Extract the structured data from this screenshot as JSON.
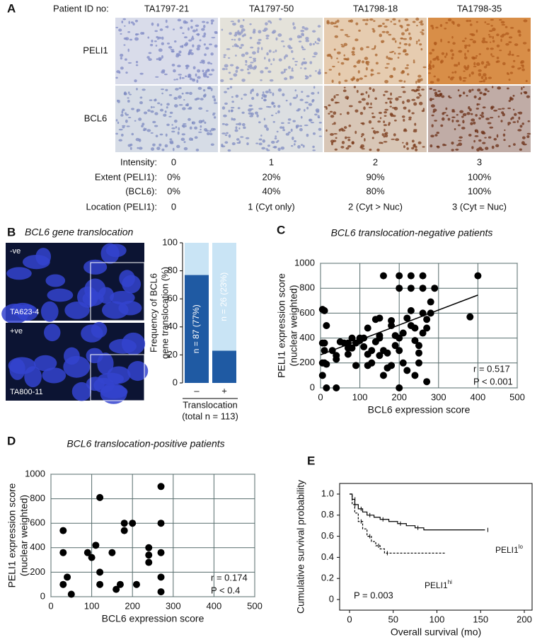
{
  "panel_a": {
    "label": "A",
    "header": "Patient ID no:",
    "patients": [
      "TA1797-21",
      "TA1797-50",
      "TA1798-18",
      "TA1798-35"
    ],
    "stains": [
      "PELI1",
      "BCL6"
    ],
    "rows": [
      {
        "label": "Intensity:",
        "cells": [
          "0",
          "1",
          "2",
          "3"
        ]
      },
      {
        "label": "Extent (PELI1):",
        "cells": [
          "0%",
          "20%",
          "90%",
          "100%"
        ]
      },
      {
        "label": "(BCL6):",
        "cells": [
          "0%",
          "40%",
          "80%",
          "100%"
        ]
      },
      {
        "label": "Location (PELI1):",
        "cells": [
          "0",
          "1 (Cyt only)",
          "2 (Cyt > Nuc)",
          "3 (Cyt = Nuc)"
        ]
      }
    ]
  },
  "panel_b": {
    "label": "B",
    "title": "BCL6 gene translocation",
    "images": [
      {
        "tag": "-ve",
        "id": "TA623-4"
      },
      {
        "tag": "+ve",
        "id": "TA800-11"
      }
    ]
  },
  "chart_data": [
    {
      "type": "bar",
      "categories": [
        "–",
        "+"
      ],
      "series": [
        {
          "color": "#1f5aa3",
          "values": [
            77,
            23
          ],
          "value_labels": [
            "n = 87 (77%)",
            "n = 26 (23%)"
          ]
        },
        {
          "color": "#c9e4f5",
          "values": [
            23,
            77
          ]
        }
      ],
      "ylabel": [
        "Frequency of BCL6",
        "gene translocation (%)"
      ],
      "xlabel": [
        "Translocation",
        "(total n = 113)"
      ],
      "ylim": [
        0,
        100
      ],
      "yticks": [
        0,
        20,
        40,
        60,
        80,
        100
      ]
    },
    {
      "type": "scatter",
      "label": "C",
      "title": "BCL6 translocation-negative patients",
      "xlabel": "BCL6 expression score",
      "ylabel": [
        "PELI1 expression score",
        "(nuclear weighted)"
      ],
      "annotations": [
        "r = 0.517",
        "P < 0.001"
      ],
      "grid": true,
      "color": "#000000",
      "xlim": [
        0,
        500
      ],
      "xticks": [
        0,
        100,
        200,
        300,
        400,
        500
      ],
      "ylim": [
        0,
        1000
      ],
      "yticks": [
        0,
        200,
        400,
        600,
        800,
        1000
      ],
      "x": [
        5,
        10,
        15,
        10,
        5,
        10,
        5,
        10,
        5,
        15,
        15,
        30,
        40,
        40,
        40,
        50,
        60,
        70,
        70,
        70,
        80,
        80,
        90,
        90,
        100,
        100,
        110,
        110,
        120,
        120,
        120,
        130,
        130,
        140,
        140,
        150,
        150,
        150,
        150,
        160,
        160,
        160,
        170,
        170,
        180,
        180,
        180,
        190,
        190,
        200,
        200,
        200,
        200,
        200,
        210,
        210,
        220,
        220,
        230,
        230,
        230,
        230,
        240,
        240,
        240,
        250,
        250,
        250,
        260,
        260,
        260,
        260,
        270,
        270,
        270,
        280,
        280,
        290,
        380,
        400
      ],
      "values": [
        630,
        620,
        500,
        360,
        360,
        300,
        200,
        200,
        100,
        0,
        190,
        300,
        0,
        260,
        230,
        370,
        360,
        360,
        320,
        270,
        400,
        320,
        180,
        360,
        380,
        400,
        330,
        400,
        270,
        180,
        480,
        300,
        200,
        550,
        370,
        400,
        560,
        260,
        420,
        900,
        300,
        100,
        280,
        160,
        180,
        500,
        540,
        420,
        340,
        900,
        800,
        400,
        300,
        0,
        440,
        200,
        140,
        560,
        900,
        800,
        500,
        620,
        100,
        480,
        380,
        340,
        200,
        280,
        900,
        800,
        600,
        440,
        550,
        50,
        480,
        600,
        690,
        800,
        570,
        900
      ],
      "trend": {
        "x": [
          0,
          400
        ],
        "values": [
          265,
          745
        ]
      }
    },
    {
      "type": "scatter",
      "label": "D",
      "title": "BCL6 translocation-positive patients",
      "xlabel": "BCL6 expression score",
      "ylabel": [
        "PELI1 expression score",
        "(nuclear weighted)"
      ],
      "annotations": [
        "r = 0.174",
        "P < 0.4"
      ],
      "grid": true,
      "color": "#000000",
      "xlim": [
        0,
        500
      ],
      "xticks": [
        0,
        100,
        200,
        300,
        400,
        500
      ],
      "ylim": [
        0,
        1000
      ],
      "yticks": [
        0,
        200,
        400,
        600,
        800,
        1000
      ],
      "x": [
        30,
        30,
        30,
        40,
        50,
        90,
        100,
        110,
        120,
        120,
        120,
        150,
        160,
        170,
        180,
        180,
        200,
        210,
        240,
        240,
        240,
        270,
        270,
        270,
        270,
        270
      ],
      "values": [
        540,
        360,
        100,
        160,
        20,
        360,
        320,
        420,
        200,
        810,
        100,
        360,
        60,
        100,
        540,
        600,
        600,
        100,
        400,
        340,
        280,
        600,
        900,
        360,
        160,
        40
      ]
    },
    {
      "type": "line",
      "label": "E",
      "xlabel": "Overall survival (mo)",
      "ylabel": "Cumulative survival probability",
      "annotations": [
        "P = 0.003"
      ],
      "xlim": [
        0,
        200
      ],
      "xticks": [
        0,
        50,
        100,
        150,
        200
      ],
      "ylim": [
        0,
        1
      ],
      "yticks": [
        0,
        0.2,
        0.4,
        0.6,
        0.8,
        {
          "value": 1,
          "label": "1.0"
        }
      ],
      "series": [
        {
          "name": "PELI1",
          "name_superscript": "lo",
          "color": "#000000",
          "dash": false,
          "x": [
            0,
            3,
            6,
            10,
            15,
            20,
            28,
            35,
            45,
            55,
            65,
            75,
            85,
            155
          ],
          "values": [
            1,
            0.95,
            0.9,
            0.86,
            0.83,
            0.8,
            0.78,
            0.76,
            0.74,
            0.72,
            0.7,
            0.68,
            0.66,
            0.66
          ]
        },
        {
          "name": "PELI1",
          "name_superscript": "hi",
          "color": "#000000",
          "dash": true,
          "x": [
            0,
            3,
            6,
            10,
            15,
            20,
            25,
            30,
            35,
            40,
            110
          ],
          "values": [
            1,
            0.9,
            0.82,
            0.74,
            0.67,
            0.6,
            0.55,
            0.51,
            0.48,
            0.44,
            0.44
          ]
        }
      ]
    }
  ]
}
